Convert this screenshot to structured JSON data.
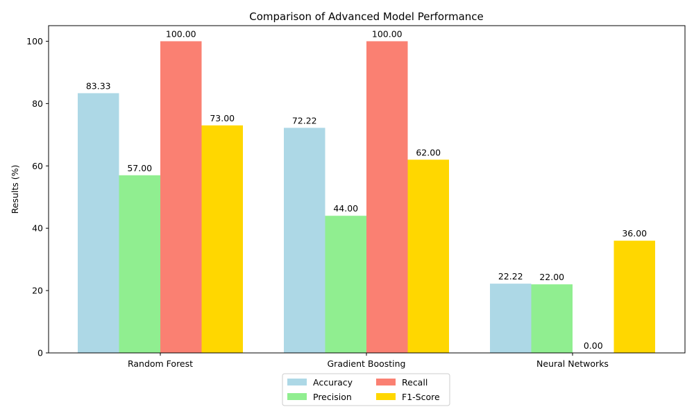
{
  "chart_data": {
    "type": "bar",
    "title": "Comparison of Advanced Model Performance",
    "xlabel": "",
    "ylabel": "Results (%)",
    "categories": [
      "Random Forest",
      "Gradient Boosting",
      "Neural Networks"
    ],
    "series": [
      {
        "name": "Accuracy",
        "color": "#add8e6",
        "values": [
          83.33,
          72.22,
          22.22
        ]
      },
      {
        "name": "Precision",
        "color": "#90ee90",
        "values": [
          57.0,
          44.0,
          22.0
        ]
      },
      {
        "name": "Recall",
        "color": "#fa8072",
        "values": [
          100.0,
          100.0,
          0.0
        ]
      },
      {
        "name": "F1-Score",
        "color": "#ffd700",
        "values": [
          73.0,
          62.0,
          36.0
        ]
      }
    ],
    "ylim": [
      0,
      105
    ],
    "yticks": [
      0,
      20,
      40,
      60,
      80,
      100
    ],
    "value_format_decimals": 2,
    "grid": false,
    "legend": {
      "placement": "bottom-center",
      "columns": 2
    }
  }
}
